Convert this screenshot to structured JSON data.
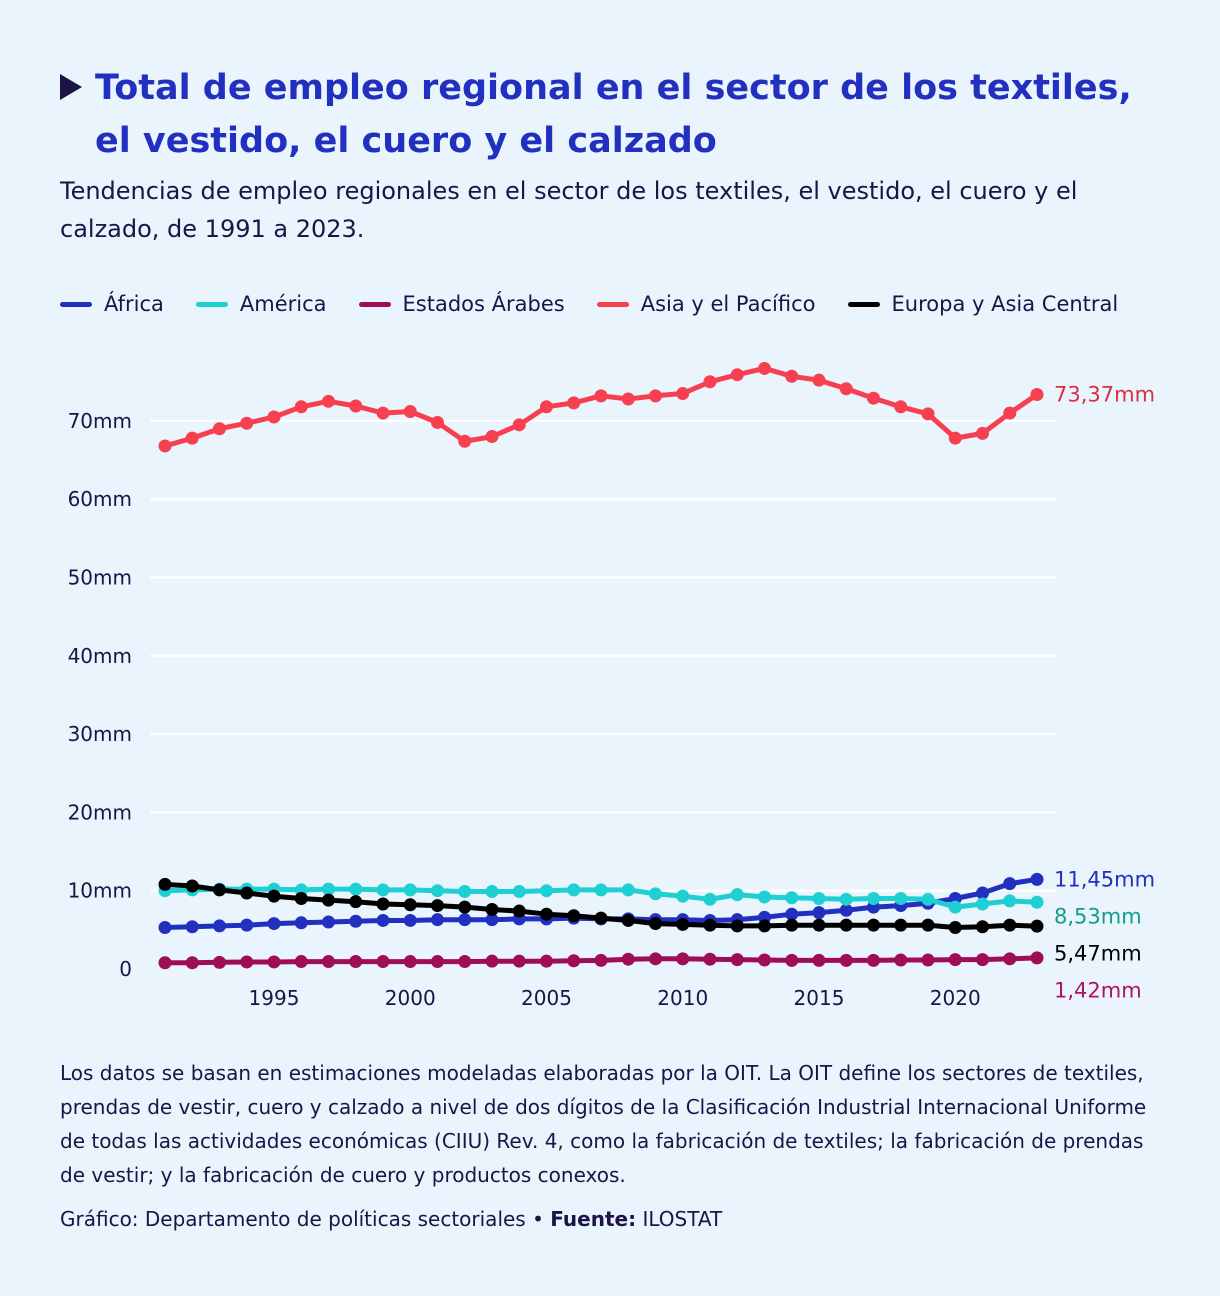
{
  "title": "Total de empleo regional en el sector de los textiles, el vestido, el cuero y el calzado",
  "subtitle": "Tendencias de empleo regionales en el sector de los textiles, el vestido, el cuero y el calzado, de 1991 a 2023.",
  "note": "Los datos se basan en estimaciones modeladas elaboradas por la OIT. La OIT define los sectores de textiles, prendas de vestir, cuero y calzado a nivel de dos dígitos de la Clasificación Industrial Internacional Uniforme de todas las actividades económicas (CIIU) Rev. 4, como la fabricación de textiles; la fabricación de prendas de vestir; y la fabricación de cuero y productos conexos.",
  "credit": {
    "text": "Gráfico: Departamento de políticas sectoriales •",
    "source_label": "Fuente:",
    "source": "ILOSTAT"
  },
  "chart_data": {
    "type": "line",
    "title": "Total de empleo regional en el sector de los textiles, el vestido, el cuero y el calzado",
    "xlabel": "",
    "ylabel": "",
    "xlim": [
      1991,
      2023
    ],
    "ylim": [
      0,
      78
    ],
    "yticks": [
      0,
      10,
      20,
      30,
      40,
      50,
      60,
      70
    ],
    "ytick_labels": [
      "0",
      "10mm",
      "20mm",
      "30mm",
      "40mm",
      "50mm",
      "60mm",
      "70mm"
    ],
    "xticks": [
      1995,
      2000,
      2005,
      2010,
      2015,
      2020
    ],
    "xtick_labels": [
      "1995",
      "2000",
      "2005",
      "2010",
      "2015",
      "2020"
    ],
    "x": [
      1991,
      1992,
      1993,
      1994,
      1995,
      1996,
      1997,
      1998,
      1999,
      2000,
      2001,
      2002,
      2003,
      2004,
      2005,
      2006,
      2007,
      2008,
      2009,
      2010,
      2011,
      2012,
      2013,
      2014,
      2015,
      2016,
      2017,
      2018,
      2019,
      2020,
      2021,
      2022,
      2023
    ],
    "grid": "horizontal",
    "legend_position": "top",
    "series": [
      {
        "name": "África",
        "color": "#2230c0",
        "label_color": "#2230c0",
        "end_label": "11,45mm",
        "values": [
          5.3,
          5.4,
          5.5,
          5.6,
          5.8,
          5.9,
          6.0,
          6.1,
          6.2,
          6.2,
          6.3,
          6.3,
          6.3,
          6.4,
          6.4,
          6.5,
          6.4,
          6.4,
          6.3,
          6.3,
          6.2,
          6.3,
          6.6,
          7.0,
          7.2,
          7.5,
          7.9,
          8.1,
          8.4,
          9.0,
          9.7,
          10.9,
          11.45
        ]
      },
      {
        "name": "América",
        "color": "#1ecfd4",
        "label_color": "#139c8d",
        "end_label": "8,53mm",
        "values": [
          10.0,
          10.1,
          10.2,
          10.2,
          10.2,
          10.1,
          10.2,
          10.2,
          10.1,
          10.1,
          10.0,
          9.9,
          9.9,
          9.9,
          10.0,
          10.1,
          10.1,
          10.1,
          9.6,
          9.3,
          8.9,
          9.5,
          9.2,
          9.1,
          9.0,
          8.9,
          9.0,
          9.0,
          8.9,
          7.9,
          8.3,
          8.7,
          8.53
        ]
      },
      {
        "name": "Estados Árabes",
        "color": "#9e0e57",
        "label_color": "#b0135f",
        "end_label": "1,42mm",
        "values": [
          0.8,
          0.8,
          0.85,
          0.9,
          0.9,
          0.95,
          0.95,
          0.95,
          0.95,
          0.95,
          0.95,
          0.95,
          1.0,
          1.0,
          1.0,
          1.05,
          1.1,
          1.25,
          1.3,
          1.3,
          1.25,
          1.2,
          1.15,
          1.1,
          1.1,
          1.1,
          1.1,
          1.15,
          1.15,
          1.2,
          1.2,
          1.3,
          1.42
        ]
      },
      {
        "name": "Asia y el Pacífico",
        "color": "#f6404f",
        "label_color": "#d93040",
        "end_label": "73,37mm",
        "values": [
          66.8,
          67.8,
          69.0,
          69.7,
          70.5,
          71.8,
          72.5,
          71.9,
          71.0,
          71.2,
          69.8,
          67.4,
          68.0,
          69.5,
          71.8,
          72.3,
          73.2,
          72.8,
          73.2,
          73.5,
          75.0,
          75.9,
          76.7,
          75.7,
          75.2,
          74.1,
          72.9,
          71.8,
          70.9,
          67.8,
          68.4,
          71.0,
          73.37
        ]
      },
      {
        "name": "Europa y Asia Central",
        "color": "#000000",
        "label_color": "#000000",
        "end_label": "5,47mm",
        "values": [
          10.8,
          10.6,
          10.1,
          9.7,
          9.3,
          9.0,
          8.8,
          8.6,
          8.3,
          8.2,
          8.1,
          7.9,
          7.6,
          7.4,
          7.0,
          6.8,
          6.5,
          6.2,
          5.8,
          5.7,
          5.6,
          5.5,
          5.5,
          5.6,
          5.6,
          5.6,
          5.6,
          5.6,
          5.6,
          5.3,
          5.4,
          5.6,
          5.47
        ]
      }
    ]
  }
}
